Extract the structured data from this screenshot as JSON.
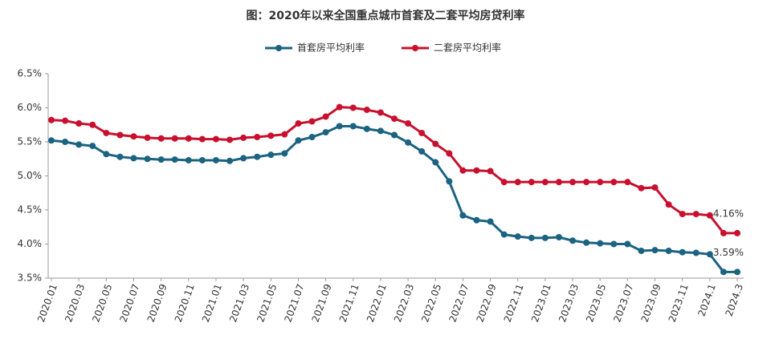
{
  "chart_data": {
    "type": "line",
    "title": "图：2020年以来全国重点城市首套及二套平均房贷利率",
    "categories": [
      "2020.01",
      null,
      "2020.03",
      null,
      "2020.05",
      null,
      "2020.07",
      null,
      "2020.09",
      null,
      "2020.11",
      null,
      "2021.01",
      null,
      "2021.03",
      null,
      "2021.05",
      null,
      "2021.07",
      null,
      "2021.09",
      null,
      "2021.11",
      null,
      "2022.01",
      null,
      "2022.03",
      null,
      "2022.05",
      null,
      "2022.07",
      null,
      "2022.09",
      null,
      "2022.11",
      null,
      "2023.01",
      null,
      "2023.03",
      null,
      "2023.05",
      null,
      "2023.07",
      null,
      "2023.09",
      null,
      "2023.11",
      null,
      "2024.1",
      null,
      "2024.3"
    ],
    "series": [
      {
        "name": "首套房平均利率",
        "color": "#1b6381",
        "values": [
          5.52,
          5.5,
          5.46,
          5.44,
          5.32,
          5.28,
          5.26,
          5.25,
          5.24,
          5.24,
          5.23,
          5.23,
          5.23,
          5.22,
          5.26,
          5.28,
          5.31,
          5.33,
          5.52,
          5.57,
          5.64,
          5.73,
          5.73,
          5.69,
          5.66,
          5.6,
          5.49,
          5.36,
          5.2,
          4.92,
          4.42,
          4.35,
          4.33,
          4.14,
          4.11,
          4.09,
          4.09,
          4.1,
          4.05,
          4.02,
          4.01,
          4.0,
          4.0,
          3.9,
          3.91,
          3.9,
          3.88,
          3.87,
          3.85,
          3.59,
          3.59
        ],
        "value_labels": [
          null,
          null,
          null,
          null,
          null,
          null,
          null,
          null,
          null,
          null,
          null,
          null,
          null,
          null,
          null,
          null,
          null,
          null,
          null,
          null,
          null,
          null,
          null,
          null,
          null,
          null,
          null,
          null,
          null,
          null,
          null,
          null,
          null,
          null,
          null,
          null,
          null,
          null,
          null,
          null,
          null,
          null,
          null,
          null,
          null,
          null,
          null,
          null,
          null,
          null,
          "3.59%"
        ]
      },
      {
        "name": "二套房平均利率",
        "color": "#c8102e",
        "values": [
          5.82,
          5.81,
          5.77,
          5.75,
          5.63,
          5.6,
          5.58,
          5.56,
          5.55,
          5.55,
          5.55,
          5.54,
          5.54,
          5.53,
          5.56,
          5.57,
          5.59,
          5.61,
          5.77,
          5.8,
          5.87,
          6.01,
          6.0,
          5.97,
          5.93,
          5.84,
          5.77,
          5.63,
          5.47,
          5.33,
          5.08,
          5.08,
          5.07,
          4.91,
          4.91,
          4.91,
          4.91,
          4.91,
          4.91,
          4.91,
          4.91,
          4.91,
          4.91,
          4.82,
          4.83,
          4.58,
          4.44,
          4.44,
          4.42,
          4.16,
          4.16
        ],
        "value_labels": [
          null,
          null,
          null,
          null,
          null,
          null,
          null,
          null,
          null,
          null,
          null,
          null,
          null,
          null,
          null,
          null,
          null,
          null,
          null,
          null,
          null,
          null,
          null,
          null,
          null,
          null,
          null,
          null,
          null,
          null,
          null,
          null,
          null,
          null,
          null,
          null,
          null,
          null,
          null,
          null,
          null,
          null,
          null,
          null,
          null,
          null,
          null,
          null,
          null,
          null,
          "4.16%"
        ]
      }
    ],
    "ylim": [
      3.5,
      6.5
    ],
    "yticks": [
      {
        "value": 3.5,
        "label": "3.5%"
      },
      {
        "value": 4.0,
        "label": "4.0%"
      },
      {
        "value": 4.5,
        "label": "4.5%"
      },
      {
        "value": 5.0,
        "label": "5.0%"
      },
      {
        "value": 5.5,
        "label": "5.5%"
      },
      {
        "value": 6.0,
        "label": "6.0%"
      },
      {
        "value": 6.5,
        "label": "6.5%"
      }
    ],
    "grid": false
  }
}
